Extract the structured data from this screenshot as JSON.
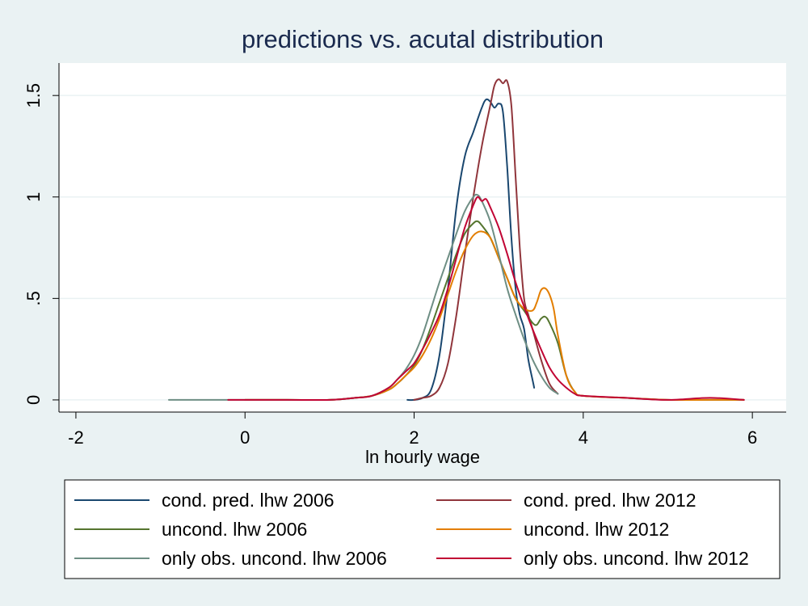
{
  "chart_data": {
    "type": "line",
    "title": "predictions vs. acutal distribution",
    "xlabel": "ln hourly wage",
    "ylabel": "",
    "xlim": [
      -2.2,
      6.4
    ],
    "ylim": [
      -0.06,
      1.66
    ],
    "x_ticks": [
      {
        "value": -2,
        "label": "-2"
      },
      {
        "value": 0,
        "label": "0"
      },
      {
        "value": 2,
        "label": "2"
      },
      {
        "value": 4,
        "label": "4"
      },
      {
        "value": 6,
        "label": "6"
      }
    ],
    "y_ticks": [
      {
        "value": 0,
        "label": "0"
      },
      {
        "value": 0.5,
        "label": ".5"
      },
      {
        "value": 1,
        "label": "1"
      },
      {
        "value": 1.5,
        "label": "1.5"
      }
    ],
    "grid": "horizontal",
    "legend_position": "bottom",
    "series": [
      {
        "name": "cond. pred. lhw 2006",
        "color": "#1a476f",
        "x": [
          1.92,
          2.0,
          2.1,
          2.2,
          2.3,
          2.4,
          2.5,
          2.6,
          2.7,
          2.8,
          2.85,
          2.9,
          2.95,
          3.0,
          3.05,
          3.1,
          3.15,
          3.2,
          3.25,
          3.3,
          3.35,
          3.4,
          3.42
        ],
        "y": [
          0.0,
          0.0,
          0.01,
          0.05,
          0.22,
          0.55,
          0.95,
          1.2,
          1.32,
          1.44,
          1.48,
          1.47,
          1.44,
          1.46,
          1.42,
          1.15,
          0.8,
          0.55,
          0.42,
          0.35,
          0.2,
          0.1,
          0.06
        ]
      },
      {
        "name": "cond. pred. lhw 2012",
        "color": "#90353b",
        "x": [
          2.0,
          2.1,
          2.2,
          2.3,
          2.4,
          2.5,
          2.6,
          2.7,
          2.8,
          2.9,
          2.95,
          3.0,
          3.05,
          3.1,
          3.15,
          3.2,
          3.25,
          3.3,
          3.35,
          3.4,
          3.5,
          3.6,
          3.7
        ],
        "y": [
          0.0,
          0.01,
          0.02,
          0.06,
          0.18,
          0.42,
          0.72,
          1.0,
          1.25,
          1.45,
          1.55,
          1.58,
          1.56,
          1.57,
          1.45,
          1.1,
          0.75,
          0.5,
          0.42,
          0.35,
          0.2,
          0.08,
          0.03
        ]
      },
      {
        "name": "uncond. lhw 2006",
        "color": "#55752f",
        "x": [
          0.0,
          0.5,
          1.0,
          1.3,
          1.5,
          1.7,
          1.8,
          1.9,
          2.0,
          2.1,
          2.2,
          2.3,
          2.4,
          2.5,
          2.6,
          2.7,
          2.75,
          2.8,
          2.9,
          3.0,
          3.1,
          3.2,
          3.3,
          3.4,
          3.45,
          3.5,
          3.55,
          3.6,
          3.7,
          3.8,
          3.9,
          4.0,
          4.5,
          5.0,
          5.5,
          5.9
        ],
        "y": [
          0.0,
          0.0,
          0.0,
          0.01,
          0.02,
          0.05,
          0.08,
          0.12,
          0.17,
          0.25,
          0.36,
          0.48,
          0.6,
          0.72,
          0.82,
          0.87,
          0.88,
          0.86,
          0.8,
          0.7,
          0.6,
          0.5,
          0.44,
          0.38,
          0.37,
          0.4,
          0.41,
          0.38,
          0.28,
          0.12,
          0.04,
          0.02,
          0.01,
          0.0,
          0.0,
          0.0
        ]
      },
      {
        "name": "uncond. lhw 2012",
        "color": "#e37e00",
        "x": [
          0.0,
          0.5,
          1.0,
          1.3,
          1.5,
          1.7,
          1.8,
          1.9,
          2.0,
          2.1,
          2.2,
          2.3,
          2.4,
          2.5,
          2.6,
          2.7,
          2.8,
          2.9,
          3.0,
          3.1,
          3.2,
          3.3,
          3.4,
          3.45,
          3.5,
          3.55,
          3.6,
          3.65,
          3.7,
          3.8,
          3.9,
          4.0,
          4.5,
          5.0,
          5.5,
          5.9
        ],
        "y": [
          0.0,
          0.0,
          0.0,
          0.01,
          0.02,
          0.05,
          0.08,
          0.12,
          0.16,
          0.22,
          0.3,
          0.4,
          0.52,
          0.64,
          0.74,
          0.81,
          0.83,
          0.8,
          0.7,
          0.6,
          0.5,
          0.45,
          0.44,
          0.48,
          0.54,
          0.55,
          0.52,
          0.45,
          0.32,
          0.12,
          0.04,
          0.02,
          0.01,
          0.0,
          0.0,
          0.0
        ]
      },
      {
        "name": "only obs. uncond. lhw 2006",
        "color": "#6e8e84",
        "x": [
          -0.9,
          -0.5,
          0.0,
          0.5,
          1.0,
          1.3,
          1.5,
          1.7,
          1.8,
          1.9,
          2.0,
          2.1,
          2.2,
          2.3,
          2.4,
          2.5,
          2.6,
          2.7,
          2.75,
          2.8,
          2.9,
          3.0,
          3.1,
          3.2,
          3.3,
          3.4,
          3.5,
          3.6,
          3.7
        ],
        "y": [
          0.0,
          0.0,
          0.0,
          0.0,
          0.0,
          0.01,
          0.02,
          0.06,
          0.1,
          0.15,
          0.22,
          0.32,
          0.45,
          0.58,
          0.7,
          0.82,
          0.93,
          1.0,
          1.01,
          0.98,
          0.88,
          0.72,
          0.55,
          0.42,
          0.3,
          0.2,
          0.12,
          0.06,
          0.03
        ]
      },
      {
        "name": "only obs. uncond. lhw 2012",
        "color": "#c10534",
        "x": [
          -0.2,
          0.0,
          0.5,
          1.0,
          1.3,
          1.5,
          1.7,
          1.8,
          1.9,
          2.0,
          2.1,
          2.2,
          2.3,
          2.4,
          2.5,
          2.6,
          2.7,
          2.75,
          2.8,
          2.85,
          2.9,
          3.0,
          3.1,
          3.2,
          3.3,
          3.4,
          3.5,
          3.6,
          3.7,
          3.8,
          3.9,
          4.0,
          4.5,
          5.0,
          5.5,
          5.9
        ],
        "y": [
          0.0,
          0.0,
          0.0,
          0.0,
          0.01,
          0.02,
          0.06,
          0.1,
          0.14,
          0.18,
          0.25,
          0.33,
          0.42,
          0.55,
          0.7,
          0.85,
          0.96,
          1.0,
          0.98,
          0.99,
          0.95,
          0.85,
          0.72,
          0.58,
          0.46,
          0.35,
          0.25,
          0.16,
          0.1,
          0.06,
          0.03,
          0.02,
          0.01,
          0.0,
          0.01,
          0.0
        ]
      }
    ]
  }
}
